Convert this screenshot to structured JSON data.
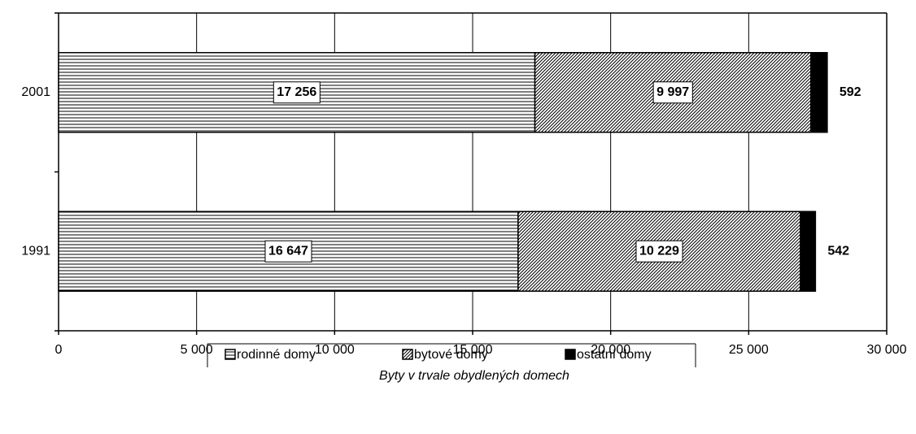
{
  "chart_data": {
    "type": "stacked-bar-horizontal",
    "categories": [
      "2001",
      "1991"
    ],
    "series": [
      {
        "name": "rodinné domy",
        "color": "#000000",
        "pattern": "horizontal",
        "values": [
          17256,
          16647
        ],
        "value_labels": [
          "17 256",
          "16 647"
        ]
      },
      {
        "name": "bytové domy",
        "color": "#000000",
        "pattern": "diagonal",
        "values": [
          9997,
          10229
        ],
        "value_labels": [
          "9 997",
          "10 229"
        ]
      },
      {
        "name": "ostatní domy",
        "color": "#000000",
        "pattern": "solid",
        "values": [
          592,
          542
        ]
      }
    ],
    "xlabel": "Byty v trvale obydlených domech",
    "xlim": [
      0,
      30000
    ],
    "xticks": [
      0,
      {
        "value": 5000,
        "label": "5 000"
      },
      {
        "value": 10000,
        "label": "10 000"
      },
      {
        "value": 15000,
        "label": "15 000"
      },
      {
        "value": 20000,
        "label": "20 000"
      },
      {
        "value": 25000,
        "label": "25 000"
      },
      {
        "value": 30000,
        "label": "30 000"
      }
    ],
    "grid": true,
    "legend": "bottom"
  }
}
